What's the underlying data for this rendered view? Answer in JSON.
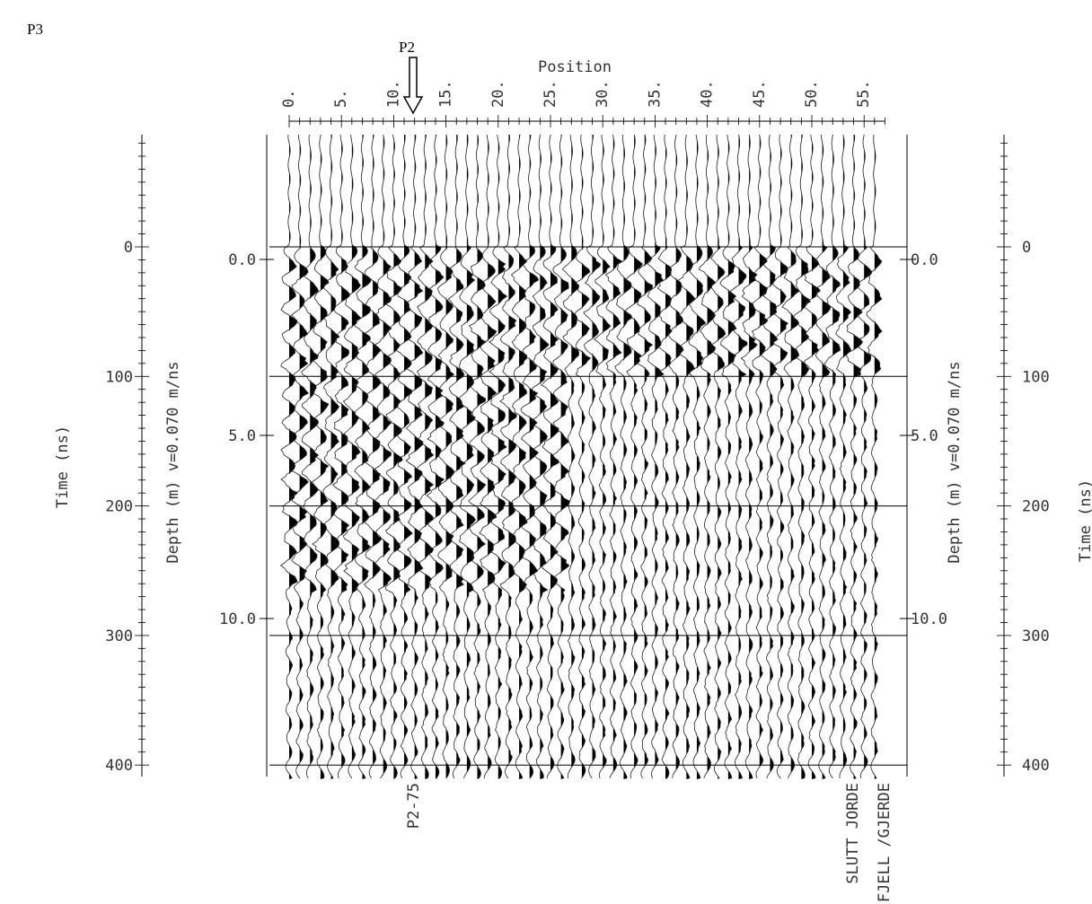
{
  "figure_label": "P3",
  "arrow_label": "P2",
  "x_axis": {
    "title": "Position",
    "ticks": [
      "0.",
      "5.",
      "10.",
      "15.",
      "20.",
      "25.",
      "30.",
      "35.",
      "40.",
      "45.",
      "50.",
      "55."
    ]
  },
  "left_time_axis": {
    "title": "Time (ns)",
    "ticks": [
      "0",
      "100",
      "200",
      "300",
      "400"
    ]
  },
  "left_depth_axis": {
    "title": "Depth (m)  v=0.070 m/ns",
    "ticks": [
      "0.0",
      "5.0",
      "10.0"
    ]
  },
  "right_depth_axis": {
    "title": "Depth (m)  v=0.070 m/ns",
    "ticks": [
      "0.0",
      "5.0",
      "10.0"
    ]
  },
  "right_time_axis": {
    "title": "Time (ns)",
    "ticks": [
      "0",
      "100",
      "200",
      "300",
      "400"
    ]
  },
  "trace_labels": [
    "P2-75",
    "SLUTT JORDE",
    "FJELL /GJERDE"
  ]
}
